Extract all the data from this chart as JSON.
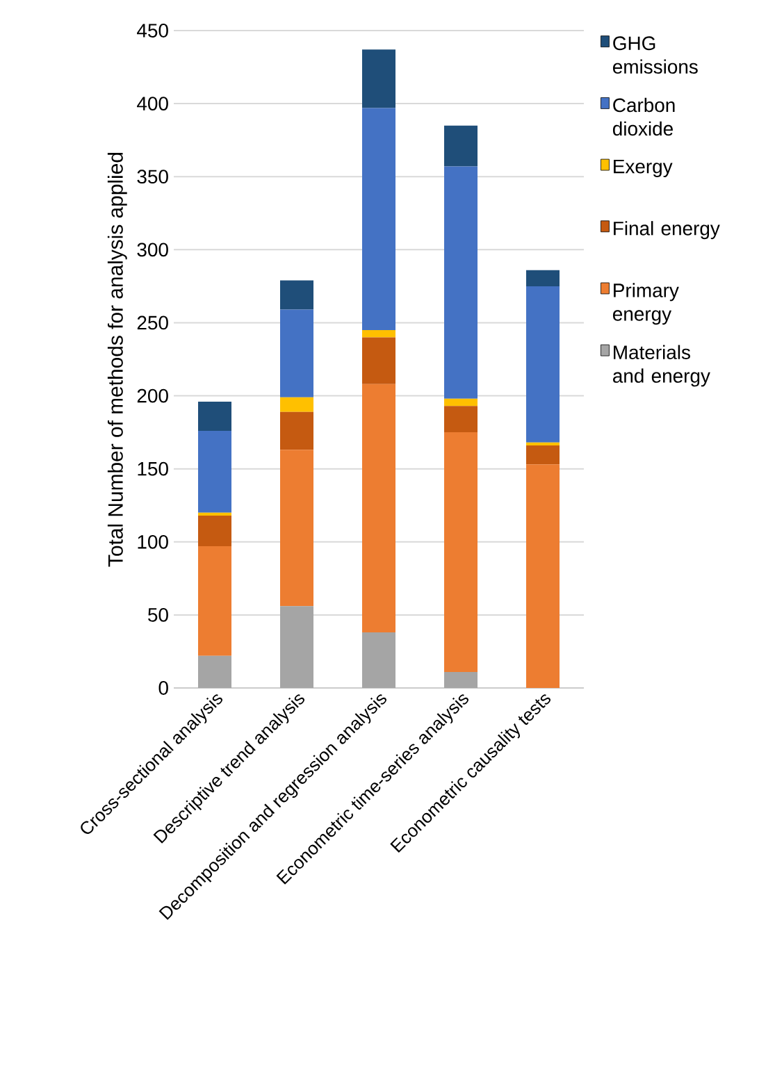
{
  "chart_data": {
    "type": "bar",
    "stacked": true,
    "ylabel": "Total Number of methods for analysis applied",
    "categories": [
      "Cross-sectional analysis",
      "Descriptive trend analysis",
      "Decomposition and regression analysis",
      "Econometric time-series analysis",
      "Econometric causality tests"
    ],
    "series": [
      {
        "name": "Materials and energy",
        "color": "#a5a5a5",
        "values": [
          22,
          56,
          38,
          11,
          0
        ]
      },
      {
        "name": "Primary energy",
        "color": "#ed7d31",
        "values": [
          75,
          107,
          170,
          164,
          153
        ]
      },
      {
        "name": "Final energy",
        "color": "#c55a11",
        "values": [
          21,
          26,
          32,
          18,
          13
        ]
      },
      {
        "name": "Exergy",
        "color": "#ffc000",
        "values": [
          2,
          10,
          5,
          5,
          2
        ]
      },
      {
        "name": "Carbon dioxide",
        "color": "#4472c4",
        "values": [
          56,
          60,
          152,
          159,
          107
        ]
      },
      {
        "name": "GHG emissions",
        "color": "#1f4e79",
        "values": [
          20,
          20,
          40,
          28,
          11
        ]
      }
    ],
    "ylim": [
      0,
      450
    ],
    "yticks": [
      0,
      50,
      100,
      150,
      200,
      250,
      300,
      350,
      400,
      450
    ],
    "grid": "y",
    "legend": "right"
  }
}
